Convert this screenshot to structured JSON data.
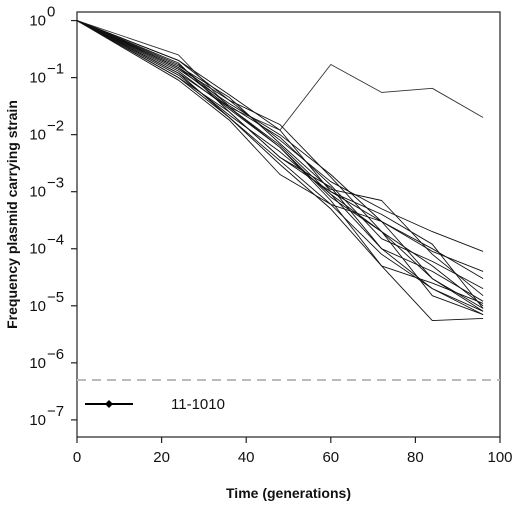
{
  "chart_data": {
    "type": "line",
    "xlabel": "Time (generations)",
    "ylabel": "Frequency plasmid carrying strain",
    "xlim": [
      0,
      100
    ],
    "ylim_log10": [
      -7.3,
      0.15
    ],
    "y_scale": "log10",
    "x_ticks": [
      0,
      20,
      40,
      60,
      80,
      100
    ],
    "x_tick_labels": [
      "0",
      "20",
      "40",
      "60",
      "80",
      "100"
    ],
    "y_ticks_exponent": [
      0,
      -1,
      -2,
      -3,
      -4,
      -5,
      -6,
      -7
    ],
    "y_tick_base": "10",
    "grid": false,
    "legend": {
      "position": "bottom-left",
      "label": "11-1010",
      "line_color": "#000000",
      "marker": "diamond"
    },
    "detection_limit": {
      "y": 5e-07,
      "style": "dashed",
      "color": "#bbbbbb"
    },
    "x": [
      0,
      24,
      36,
      48,
      60,
      72,
      84,
      96
    ],
    "series": [
      {
        "values": [
          1,
          0.25,
          0.03,
          0.012,
          0.17,
          0.055,
          0.065,
          0.02
        ],
        "color": "#333333"
      },
      {
        "values": [
          1,
          0.2,
          0.05,
          0.012,
          0.001,
          0.0003,
          3e-05,
          9e-06
        ],
        "color": "#111111"
      },
      {
        "values": [
          1,
          0.12,
          0.03,
          0.006,
          0.0008,
          0.0002,
          1.5e-05,
          7e-06
        ],
        "color": "#111111"
      },
      {
        "values": [
          1,
          0.1,
          0.02,
          0.003,
          0.0005,
          5e-05,
          5.5e-06,
          6e-06
        ],
        "color": "#111111"
      },
      {
        "values": [
          1,
          0.15,
          0.04,
          0.008,
          0.0015,
          0.0005,
          0.0002,
          9e-05
        ],
        "color": "#111111"
      },
      {
        "values": [
          1,
          0.18,
          0.025,
          0.004,
          0.0012,
          0.0001,
          4e-05,
          1.2e-05
        ],
        "color": "#111111"
      },
      {
        "values": [
          1,
          0.09,
          0.018,
          0.002,
          0.0006,
          8e-05,
          2e-05,
          8e-06
        ],
        "color": "#111111"
      },
      {
        "values": [
          1,
          0.14,
          0.035,
          0.01,
          0.002,
          0.0003,
          0.0001,
          3e-05
        ],
        "color": "#111111"
      },
      {
        "values": [
          1,
          0.11,
          0.022,
          0.005,
          0.0009,
          0.0002,
          5e-05,
          1e-05
        ],
        "color": "#111111"
      },
      {
        "values": [
          1,
          0.16,
          0.045,
          0.007,
          0.0011,
          0.0007,
          8e-05,
          1.5e-05
        ],
        "color": "#111111"
      },
      {
        "values": [
          1,
          0.13,
          0.028,
          0.006,
          0.0007,
          5e-05,
          2.5e-05,
          1.1e-05
        ],
        "color": "#111111"
      },
      {
        "values": [
          1,
          0.17,
          0.032,
          0.009,
          0.0013,
          0.00015,
          6e-05,
          2e-05
        ],
        "color": "#111111"
      },
      {
        "values": [
          1,
          0.1,
          0.025,
          0.004,
          0.001,
          0.0004,
          0.00012,
          9e-06
        ],
        "color": "#111111"
      },
      {
        "values": [
          1,
          0.2,
          0.04,
          0.015,
          0.0018,
          0.0002,
          3e-05,
          8e-06
        ],
        "color": "#111111"
      },
      {
        "values": [
          1,
          0.12,
          0.02,
          0.0035,
          0.0006,
          0.0003,
          9e-05,
          4e-05
        ],
        "color": "#111111"
      },
      {
        "values": [
          1,
          0.15,
          0.03,
          0.0065,
          0.0009,
          0.0001,
          2e-05,
          7e-06
        ],
        "color": "#111111"
      }
    ]
  }
}
